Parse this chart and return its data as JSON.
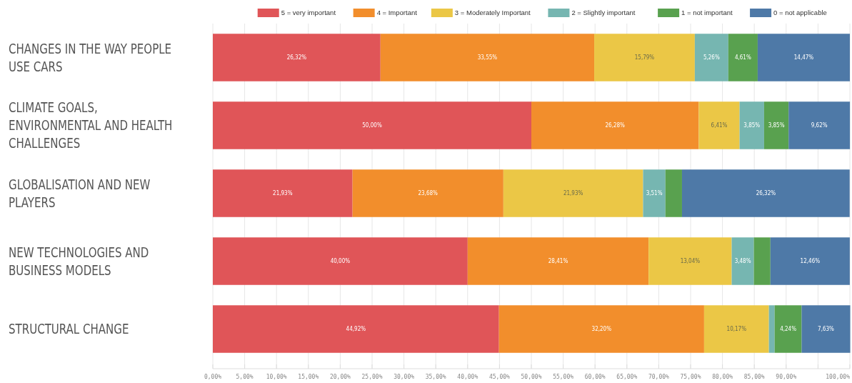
{
  "chart_data": {
    "type": "bar",
    "orientation": "horizontal",
    "stacked": true,
    "categories": [
      "CHANGES IN THE WAY PEOPLE USE CARS",
      "CLIMATE GOALS, ENVIRONMENTAL AND HEALTH CHALLENGES",
      "GLOBALISATION AND NEW PLAYERS",
      "NEW TECHNOLOGIES AND BUSINESS MODELS",
      "STRUCTURAL CHANGE"
    ],
    "series": [
      {
        "name": "5 = very important",
        "color": "#e05558",
        "values": [
          26.32,
          50.0,
          21.93,
          40.0,
          44.92
        ],
        "value_labels": [
          "26,32%",
          "50,00%",
          "21,93%",
          "40,00%",
          "44,92%"
        ]
      },
      {
        "name": "4 = Important",
        "color": "#f28e2c",
        "values": [
          33.55,
          26.28,
          23.68,
          28.41,
          32.2
        ],
        "value_labels": [
          "33,55%",
          "26,28%",
          "23,68%",
          "28,41%",
          "32,20%"
        ]
      },
      {
        "name": "3 = Moderately Important",
        "color": "#ebc746",
        "values": [
          15.79,
          6.41,
          21.93,
          13.04,
          10.17
        ],
        "value_labels": [
          "15,79%",
          "6,41%",
          "21,93%",
          "13,04%",
          "10,17%"
        ]
      },
      {
        "name": "2 = Slightly important",
        "color": "#76b6b1",
        "values": [
          5.26,
          3.85,
          3.51,
          3.48,
          0.9
        ],
        "value_labels": [
          "5,26%",
          "3,85%",
          "3,51%",
          "3,48%",
          null
        ]
      },
      {
        "name": "1 = not important",
        "color": "#59a14f",
        "values": [
          4.61,
          3.85,
          2.6,
          2.6,
          4.24
        ],
        "value_labels": [
          "4,61%",
          "3,85%",
          null,
          null,
          "4,24%"
        ]
      },
      {
        "name": "0 = not applicable",
        "color": "#4e79a7",
        "values": [
          14.47,
          9.62,
          26.32,
          12.46,
          7.63
        ],
        "value_labels": [
          "14,47%",
          "9,62%",
          "26,32%",
          "12,46%",
          "7,63%"
        ]
      }
    ],
    "xlim": [
      0,
      100
    ],
    "xticks": [
      {
        "value": 0,
        "label": "0,00%"
      },
      {
        "value": 5,
        "label": "5,00%"
      },
      {
        "value": 10,
        "label": "10,00%"
      },
      {
        "value": 15,
        "label": "15,00%"
      },
      {
        "value": 20,
        "label": "20,00%"
      },
      {
        "value": 25,
        "label": "25,00%"
      },
      {
        "value": 30,
        "label": "30,00%"
      },
      {
        "value": 35,
        "label": "35,00%"
      },
      {
        "value": 40,
        "label": "40,00%"
      },
      {
        "value": 45,
        "label": "45,00%"
      },
      {
        "value": 50,
        "label": "50,00%"
      },
      {
        "value": 55,
        "label": "55,00%"
      },
      {
        "value": 60,
        "label": "60,00%"
      },
      {
        "value": 65,
        "label": "65,00%"
      },
      {
        "value": 70,
        "label": "70,00%"
      },
      {
        "value": 75,
        "label": "75,00%"
      },
      {
        "value": 80,
        "label": "80,00%"
      },
      {
        "value": 85,
        "label": "85,00%"
      },
      {
        "value": 90,
        "label": "90,00%"
      },
      {
        "value": 95,
        "label": null
      },
      {
        "value": 100,
        "label": "100,00%"
      }
    ],
    "grid": "x",
    "legend": "top right"
  }
}
